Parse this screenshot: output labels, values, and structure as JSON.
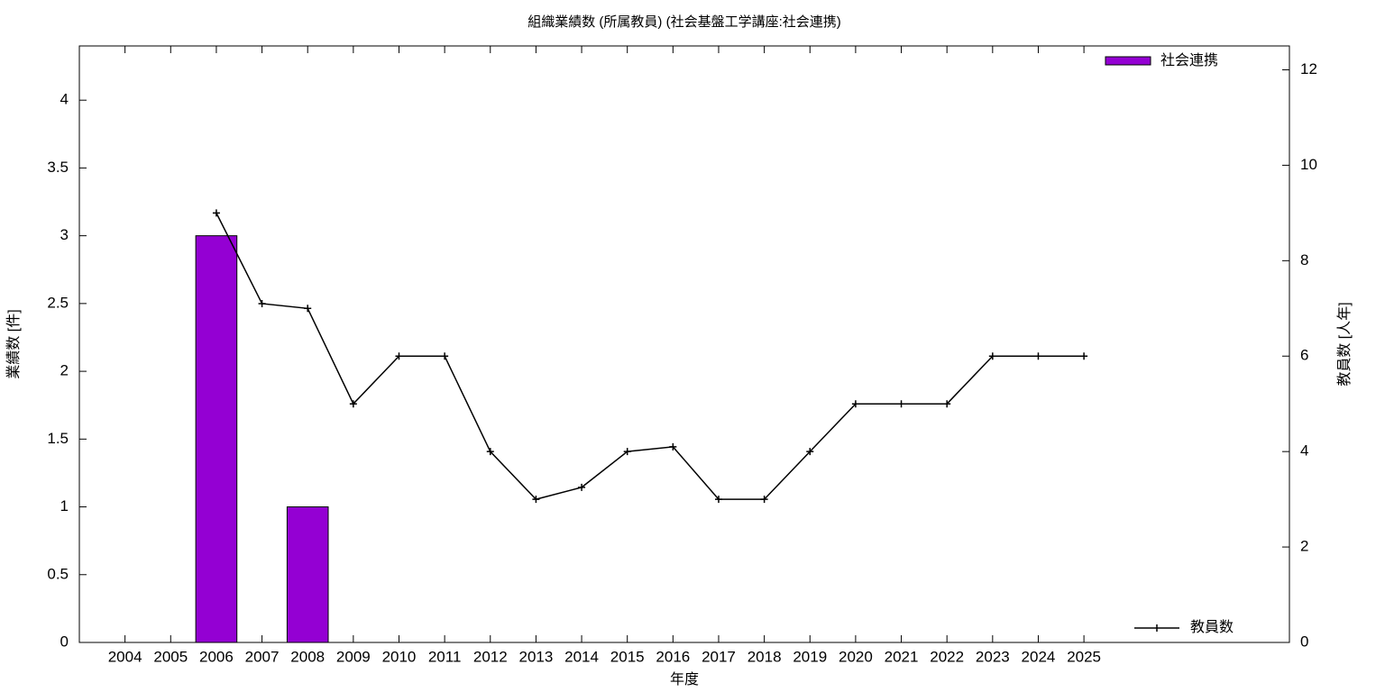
{
  "chart_data": {
    "type": "bar-line",
    "title": "組織業績数 (所属教員) (社会基盤工学講座:社会連携)",
    "x_label": "年度",
    "y_label": "業績数 [件]",
    "y2_label": "教員数 [人年]",
    "x": [
      2004,
      2005,
      2006,
      2007,
      2008,
      2009,
      2010,
      2011,
      2012,
      2013,
      2014,
      2015,
      2016,
      2017,
      2018,
      2019,
      2020,
      2021,
      2022,
      2023,
      2024,
      2025
    ],
    "xlim": [
      2003,
      2029.5
    ],
    "xticks": [
      2004,
      2005,
      2006,
      2007,
      2008,
      2009,
      2010,
      2011,
      2012,
      2013,
      2014,
      2015,
      2016,
      2017,
      2018,
      2019,
      2020,
      2021,
      2022,
      2023,
      2024,
      2025
    ],
    "ylim": [
      0,
      4.4
    ],
    "yticks": [
      0,
      0.5,
      1,
      1.5,
      2,
      2.5,
      3,
      3.5,
      4
    ],
    "y2lim": [
      0,
      12.5
    ],
    "y2ticks": [
      0,
      2,
      4,
      6,
      8,
      10,
      12
    ],
    "series": [
      {
        "name": "社会連携",
        "type": "bar",
        "color": "#9400d3",
        "axis": "y",
        "values": [
          0,
          0,
          3,
          0,
          1,
          0,
          0,
          0,
          0,
          0,
          0,
          0,
          0,
          0,
          0,
          0,
          0,
          0,
          0,
          0,
          0,
          0
        ]
      },
      {
        "name": "教員数",
        "type": "line",
        "color": "#000000",
        "axis": "y2",
        "values": [
          null,
          null,
          9,
          7.1,
          7,
          5,
          6,
          6,
          4,
          3,
          3.25,
          4,
          4.1,
          3,
          3,
          4,
          5,
          5,
          5,
          6,
          6,
          6
        ]
      }
    ]
  }
}
